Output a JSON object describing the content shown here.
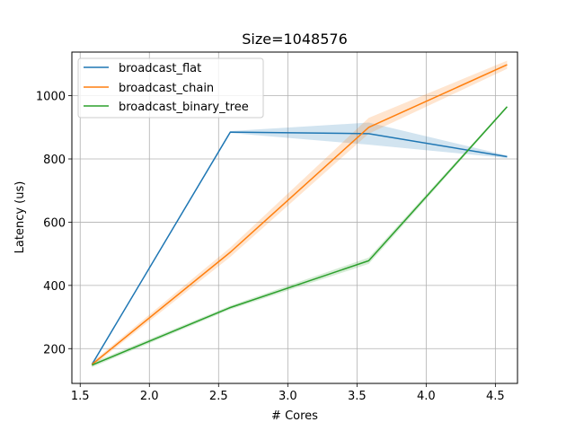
{
  "chart_data": {
    "type": "line",
    "title": "Size=1048576",
    "xlabel": "# Cores",
    "ylabel": "Latency (us)",
    "xlim": [
      1.44,
      4.66
    ],
    "ylim": [
      90,
      1138
    ],
    "xticks": [
      1.5,
      2.0,
      2.5,
      3.0,
      3.5,
      4.0,
      4.5
    ],
    "xtick_labels": [
      "1.5",
      "2.0",
      "2.5",
      "3.0",
      "3.5",
      "4.0",
      "4.5"
    ],
    "yticks": [
      200,
      400,
      600,
      800,
      1000
    ],
    "ytick_labels": [
      "200",
      "400",
      "600",
      "800",
      "1000"
    ],
    "grid": true,
    "legend_position": "top-left",
    "series": [
      {
        "name": "broadcast_flat",
        "color": "#1f77b4",
        "x": [
          1.585,
          2.585,
          3.585,
          4.585
        ],
        "y": [
          150,
          885,
          880,
          807
        ],
        "lower": [
          147,
          882,
          845,
          803
        ],
        "upper": [
          153,
          888,
          915,
          811
        ]
      },
      {
        "name": "broadcast_chain",
        "color": "#ff7f0e",
        "x": [
          1.585,
          2.585,
          3.585,
          4.585
        ],
        "y": [
          150,
          505,
          900,
          1098
        ],
        "lower": [
          143,
          490,
          880,
          1085
        ],
        "upper": [
          157,
          520,
          930,
          1111
        ]
      },
      {
        "name": "broadcast_binary_tree",
        "color": "#2ca02c",
        "x": [
          1.585,
          2.585,
          3.585,
          4.585
        ],
        "y": [
          148,
          330,
          478,
          965
        ],
        "lower": [
          141,
          324,
          468,
          961
        ],
        "upper": [
          155,
          336,
          488,
          969
        ]
      }
    ]
  }
}
